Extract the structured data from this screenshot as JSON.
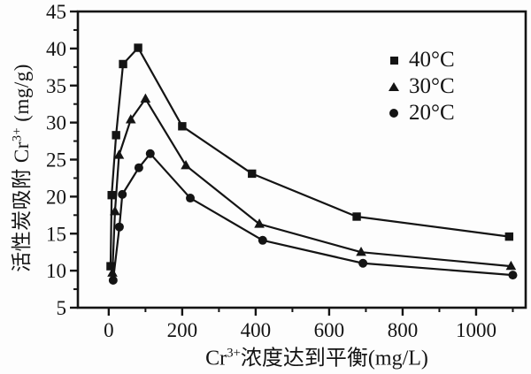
{
  "figure": {
    "background": "#fdfdfd",
    "ink_color": "#141414"
  },
  "chart_data": {
    "type": "line",
    "title": "",
    "xlabel_parts": {
      "prefix": "Cr",
      "sup": "3+",
      "suffix": "浓度达到平衡(mg/L)"
    },
    "ylabel_parts": {
      "prefix": "活性炭吸附 Cr",
      "sup": "3+",
      "suffix": " (mg/g)"
    },
    "xlabel_plain": "Cr3+ 浓度达到平衡 (mg/L)",
    "ylabel_plain": "活性炭吸附 Cr3+ (mg/g)",
    "xlim": [
      -84,
      1135
    ],
    "ylim": [
      5,
      45
    ],
    "x_major_ticks": [
      0,
      200,
      400,
      600,
      800,
      1000
    ],
    "x_minor_ticks": [
      100,
      300,
      500,
      700,
      900,
      1100
    ],
    "y_major_ticks": [
      5,
      10,
      15,
      20,
      25,
      30,
      35,
      40,
      45
    ],
    "y_minor_ticks": [
      7.5,
      12.5,
      17.5,
      22.5,
      27.5,
      32.5,
      37.5,
      42.5
    ],
    "grid": false,
    "legend_position": "upper-right-inside",
    "series": [
      {
        "name": "40°C",
        "marker": "square",
        "points": [
          [
            5,
            10.6
          ],
          [
            8,
            20.2
          ],
          [
            20,
            28.3
          ],
          [
            39,
            37.9
          ],
          [
            80,
            40.1
          ],
          [
            200,
            29.5
          ],
          [
            390,
            23.1
          ],
          [
            675,
            17.3
          ],
          [
            1090,
            14.6
          ]
        ]
      },
      {
        "name": "30°C",
        "marker": "triangle",
        "points": [
          [
            10,
            9.7
          ],
          [
            17,
            18.0
          ],
          [
            28,
            25.6
          ],
          [
            60,
            30.4
          ],
          [
            100,
            33.2
          ],
          [
            210,
            24.2
          ],
          [
            410,
            16.3
          ],
          [
            687,
            12.5
          ],
          [
            1095,
            10.6
          ]
        ]
      },
      {
        "name": "20°C",
        "marker": "circle",
        "points": [
          [
            12,
            8.7
          ],
          [
            29,
            15.9
          ],
          [
            37,
            20.3
          ],
          [
            82,
            23.9
          ],
          [
            113,
            25.8
          ],
          [
            222,
            19.8
          ],
          [
            419,
            14.1
          ],
          [
            692,
            11.0
          ],
          [
            1100,
            9.4
          ]
        ]
      }
    ]
  }
}
